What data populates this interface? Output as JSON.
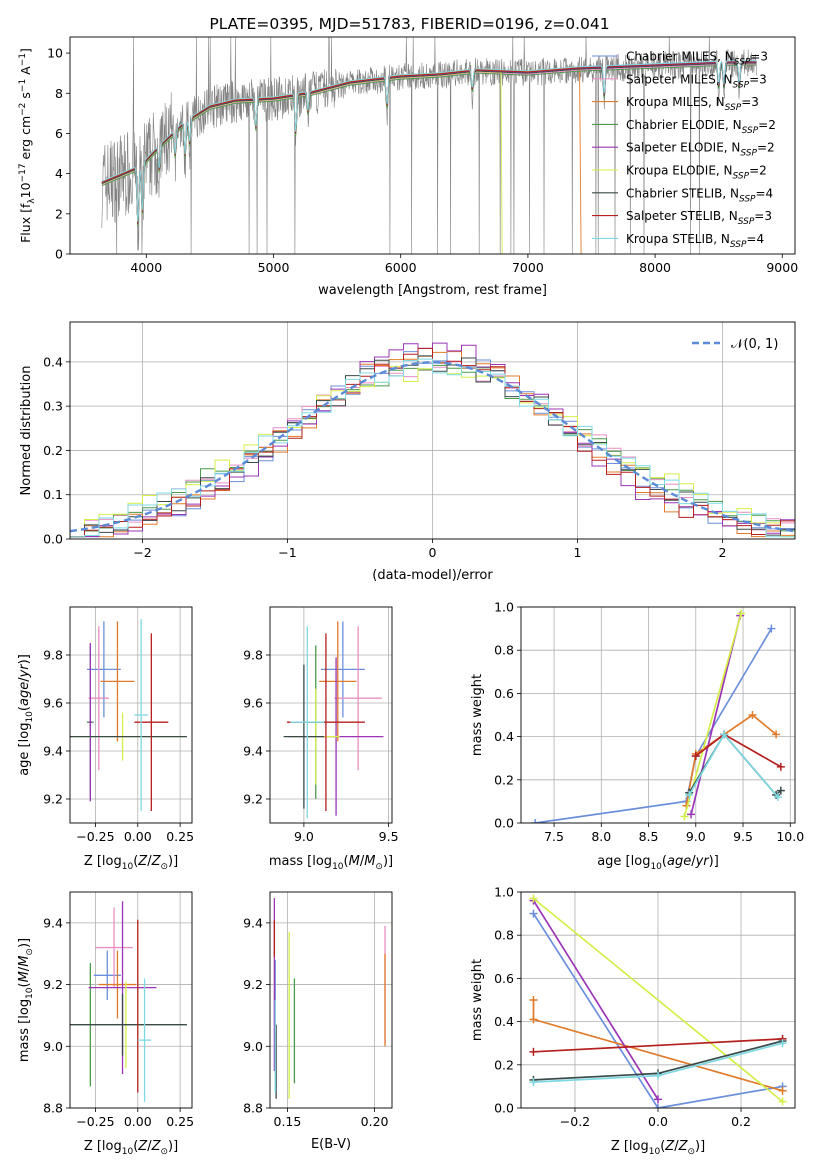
{
  "figure_title": "PLATE=0395, MJD=51783, FIBERID=0196, z=0.041",
  "colors": {
    "chabrier_miles": "#6b8fdc",
    "salpeter_miles": "#e98fc3",
    "kroupa_miles": "#e07b2a",
    "chabrier_elodie": "#4c9a4c",
    "salpeter_elodie": "#9b35b6",
    "kroupa_elodie": "#d4ee4a",
    "chabrier_stelib": "#3a4a4a",
    "salpeter_stelib": "#b51f1f",
    "kroupa_stelib": "#7ed9e3",
    "data_gray": "#808080",
    "normal_dash": "#5b8ad6",
    "grid": "#b0b0b0"
  },
  "chart_data": [
    {
      "id": "spectrum",
      "type": "line",
      "title": "PLATE=0395, MJD=51783, FIBERID=0196, z=0.041",
      "xlabel": "wavelength [Angstrom, rest frame]",
      "ylabel_parts": [
        "Flux [f",
        "λ",
        "10",
        "−17",
        " erg cm",
        "−2",
        " s",
        "−1",
        " A",
        "−1",
        "]"
      ],
      "xlim": [
        3400,
        9100
      ],
      "ylim": [
        0,
        10.8
      ],
      "x_ticks": [
        4000,
        5000,
        6000,
        7000,
        8000,
        9000
      ],
      "y_ticks": [
        0,
        2,
        4,
        6,
        8,
        10
      ],
      "grid": false,
      "legend_position": "top-right",
      "continuum": {
        "x": [
          3650,
          3800,
          3950,
          4100,
          4300,
          4500,
          4700,
          5000,
          5300,
          5600,
          6000,
          6300,
          6600,
          7000,
          7400,
          7800,
          8200,
          8600,
          8800
        ],
        "y": [
          3.5,
          3.9,
          4.3,
          5.3,
          6.5,
          7.3,
          7.6,
          7.7,
          8.0,
          8.5,
          8.8,
          8.9,
          9.1,
          9.0,
          9.2,
          9.3,
          9.4,
          9.5,
          9.5
        ]
      },
      "legend": [
        {
          "label": "Chabrier MILES, N",
          "sub": "SSP",
          "suffix": "=3",
          "color_key": "chabrier_miles"
        },
        {
          "label": "Salpeter MILES, N",
          "sub": "SSP",
          "suffix": "=3",
          "color_key": "salpeter_miles"
        },
        {
          "label": "Kroupa MILES, N",
          "sub": "SSP",
          "suffix": "=3",
          "color_key": "kroupa_miles"
        },
        {
          "label": "Chabrier ELODIE, N",
          "sub": "SSP",
          "suffix": "=2",
          "color_key": "chabrier_elodie"
        },
        {
          "label": "Salpeter ELODIE, N",
          "sub": "SSP",
          "suffix": "=2",
          "color_key": "salpeter_elodie"
        },
        {
          "label": "Kroupa ELODIE, N",
          "sub": "SSP",
          "suffix": "=2",
          "color_key": "kroupa_elodie"
        },
        {
          "label": "Chabrier STELIB, N",
          "sub": "SSP",
          "suffix": "=4",
          "color_key": "chabrier_stelib"
        },
        {
          "label": "Salpeter STELIB, N",
          "sub": "SSP",
          "suffix": "=3",
          "color_key": "salpeter_stelib"
        },
        {
          "label": "Kroupa STELIB, N",
          "sub": "SSP",
          "suffix": "=4",
          "color_key": "kroupa_stelib"
        }
      ]
    },
    {
      "id": "residuals",
      "type": "area",
      "xlabel": "(data-model)/error",
      "ylabel": "Normed distribution",
      "xlim": [
        -2.5,
        2.5
      ],
      "ylim": [
        0,
        0.49
      ],
      "x_ticks": [
        -2,
        -1,
        0,
        1,
        2
      ],
      "y_ticks": [
        0.0,
        0.1,
        0.2,
        0.3,
        0.4
      ],
      "grid": true,
      "legend_position": "top-right",
      "legend": [
        {
          "label": "𝒩(0, 1)",
          "color_key": "normal_dash"
        }
      ],
      "bin_width": 0.1,
      "series": [
        {
          "name": "Chabrier MILES",
          "color_key": "chabrier_miles",
          "offset": 0.012
        },
        {
          "name": "Salpeter MILES",
          "color_key": "salpeter_miles",
          "offset": -0.008
        },
        {
          "name": "Kroupa MILES",
          "color_key": "kroupa_miles",
          "offset": 0.02
        },
        {
          "name": "Chabrier ELODIE",
          "color_key": "chabrier_elodie",
          "offset": -0.015
        },
        {
          "name": "Salpeter ELODIE",
          "color_key": "salpeter_elodie",
          "offset": 0.03
        },
        {
          "name": "Kroupa ELODIE",
          "color_key": "kroupa_elodie",
          "offset": -0.02
        },
        {
          "name": "Chabrier STELIB",
          "color_key": "chabrier_stelib",
          "offset": 0.005
        },
        {
          "name": "Salpeter STELIB",
          "color_key": "salpeter_stelib",
          "offset": 0.018
        },
        {
          "name": "Kroupa STELIB",
          "color_key": "kroupa_stelib",
          "offset": -0.01
        }
      ]
    },
    {
      "id": "age_vs_Z",
      "type": "scatter",
      "xlabel": "Z [log10(Z/Z⊙)]",
      "ylabel": "age  [log10(age/yr)]",
      "xlim": [
        -0.4,
        0.32
      ],
      "ylim": [
        9.1,
        10.0
      ],
      "x_ticks": [
        -0.25,
        0.0,
        0.25
      ],
      "x_tick_labels": [
        "−0.25",
        "0.00",
        "0.25"
      ],
      "y_ticks": [
        9.2,
        9.4,
        9.6,
        9.8
      ],
      "grid": true,
      "points": [
        {
          "color_key": "chabrier_miles",
          "x": -0.2,
          "xerr": 0.1,
          "y": 9.74,
          "yerr": 0.2
        },
        {
          "color_key": "salpeter_miles",
          "x": -0.23,
          "xerr": 0.06,
          "y": 9.62,
          "yerr": 0.3
        },
        {
          "color_key": "kroupa_miles",
          "x": -0.12,
          "xerr": 0.1,
          "y": 9.69,
          "yerr": 0.25
        },
        {
          "color_key": "chabrier_elodie",
          "x": -0.28,
          "xerr": 0.02,
          "y": 9.52,
          "yerr": 0.32
        },
        {
          "color_key": "salpeter_elodie",
          "x": -0.28,
          "xerr": 0.01,
          "y": 9.52,
          "yerr": 0.33
        },
        {
          "color_key": "kroupa_elodie",
          "x": -0.09,
          "xerr": 0.37,
          "y": 9.46,
          "yerr": 0.1
        },
        {
          "color_key": "chabrier_stelib",
          "x": -0.09,
          "xerr": 0.38,
          "y": 9.46,
          "yerr": 0.0
        },
        {
          "color_key": "salpeter_stelib",
          "x": 0.08,
          "xerr": 0.1,
          "y": 9.52,
          "yerr": 0.37
        },
        {
          "color_key": "kroupa_stelib",
          "x": 0.02,
          "xerr": 0.04,
          "y": 9.55,
          "yerr": 0.4
        }
      ]
    },
    {
      "id": "age_vs_mass",
      "type": "scatter",
      "xlabel": "mass [log10(M/M⊙)]",
      "xlim": [
        8.8,
        9.52
      ],
      "ylim": [
        9.1,
        10.0
      ],
      "x_ticks": [
        9.0,
        9.5
      ],
      "x_tick_labels": [
        "9.0",
        "9.5"
      ],
      "y_ticks": [
        9.2,
        9.4,
        9.6,
        9.8
      ],
      "grid": true,
      "points": [
        {
          "color_key": "chabrier_miles",
          "x": 9.23,
          "xerr": 0.13,
          "y": 9.74,
          "yerr": 0.2
        },
        {
          "color_key": "salpeter_miles",
          "x": 9.32,
          "xerr": 0.14,
          "y": 9.62,
          "yerr": 0.3
        },
        {
          "color_key": "kroupa_miles",
          "x": 9.2,
          "xerr": 0.11,
          "y": 9.69,
          "yerr": 0.25
        },
        {
          "color_key": "chabrier_elodie",
          "x": 9.07,
          "xerr": 0.05,
          "y": 9.52,
          "yerr": 0.32
        },
        {
          "color_key": "salpeter_elodie",
          "x": 9.19,
          "xerr": 0.28,
          "y": 9.46,
          "yerr": 0.33
        },
        {
          "color_key": "kroupa_elodie",
          "x": 9.07,
          "xerr": 0.14,
          "y": 9.46,
          "yerr": 0.2
        },
        {
          "color_key": "chabrier_stelib",
          "x": 9.0,
          "xerr": 0.12,
          "y": 9.46,
          "yerr": 0.3
        },
        {
          "color_key": "salpeter_stelib",
          "x": 9.13,
          "xerr": 0.23,
          "y": 9.52,
          "yerr": 0.37
        },
        {
          "color_key": "kroupa_stelib",
          "x": 9.02,
          "xerr": 0.1,
          "y": 9.52,
          "yerr": 0.4
        }
      ]
    },
    {
      "id": "mass_weight_vs_age",
      "type": "line",
      "xlabel": "age  [log10(age/yr)]",
      "ylabel": "mass weight",
      "xlim": [
        7.15,
        10.05
      ],
      "ylim": [
        0,
        1.0
      ],
      "x_ticks": [
        7.5,
        8.0,
        8.5,
        9.0,
        9.5,
        10.0
      ],
      "y_ticks": [
        0.0,
        0.2,
        0.4,
        0.6,
        0.8,
        1.0
      ],
      "grid": true,
      "series": [
        {
          "name": "Chabrier MILES",
          "color_key": "chabrier_miles",
          "x": [
            7.3,
            8.9,
            9.0,
            9.8
          ],
          "y": [
            0.0,
            0.1,
            0.31,
            0.9
          ]
        },
        {
          "name": "Kroupa MILES",
          "color_key": "kroupa_miles",
          "x": [
            8.9,
            9.0,
            9.6,
            9.85
          ],
          "y": [
            0.08,
            0.32,
            0.5,
            0.41
          ]
        },
        {
          "name": "Salpeter ELODIE",
          "color_key": "salpeter_elodie",
          "x": [
            8.95,
            9.47
          ],
          "y": [
            0.04,
            0.96
          ]
        },
        {
          "name": "Kroupa ELODIE",
          "color_key": "kroupa_elodie",
          "x": [
            8.88,
            9.48
          ],
          "y": [
            0.03,
            0.97
          ]
        },
        {
          "name": "Chabrier STELIB",
          "color_key": "chabrier_stelib",
          "x": [
            8.93,
            9.3,
            9.85,
            9.9
          ],
          "y": [
            0.14,
            0.41,
            0.13,
            0.15
          ]
        },
        {
          "name": "Salpeter STELIB",
          "color_key": "salpeter_stelib",
          "x": [
            9.0,
            9.3,
            9.9
          ],
          "y": [
            0.31,
            0.41,
            0.26
          ]
        },
        {
          "name": "Kroupa STELIB",
          "color_key": "kroupa_stelib",
          "x": [
            8.93,
            9.3,
            9.87
          ],
          "y": [
            0.13,
            0.41,
            0.12
          ]
        }
      ]
    },
    {
      "id": "mass_vs_Z",
      "type": "scatter",
      "xlabel": "Z [log10(Z/Z⊙)]",
      "ylabel": "mass [log10(M/M⊙)]",
      "xlim": [
        -0.4,
        0.32
      ],
      "ylim": [
        8.8,
        9.5
      ],
      "x_ticks": [
        -0.25,
        0.0,
        0.25
      ],
      "x_tick_labels": [
        "−0.25",
        "0.00",
        "0.25"
      ],
      "y_ticks": [
        8.8,
        9.0,
        9.2,
        9.4
      ],
      "grid": true,
      "points": [
        {
          "color_key": "chabrier_miles",
          "x": -0.18,
          "xerr": 0.08,
          "y": 9.23,
          "yerr": 0.08
        },
        {
          "color_key": "salpeter_miles",
          "x": -0.14,
          "xerr": 0.11,
          "y": 9.32,
          "yerr": 0.13
        },
        {
          "color_key": "kroupa_miles",
          "x": -0.12,
          "xerr": 0.11,
          "y": 9.2,
          "yerr": 0.11
        },
        {
          "color_key": "chabrier_elodie",
          "x": -0.28,
          "xerr": 0.01,
          "y": 9.07,
          "yerr": 0.2
        },
        {
          "color_key": "salpeter_elodie",
          "x": -0.09,
          "xerr": 0.2,
          "y": 9.19,
          "yerr": 0.28
        },
        {
          "color_key": "kroupa_elodie",
          "x": -0.07,
          "xerr": 0.33,
          "y": 9.07,
          "yerr": 0.14
        },
        {
          "color_key": "chabrier_stelib",
          "x": -0.09,
          "xerr": 0.38,
          "y": 9.07,
          "yerr": 0.1
        },
        {
          "color_key": "salpeter_stelib",
          "x": 0.0,
          "xerr": 0.0,
          "y": 9.13,
          "yerr": 0.28
        },
        {
          "color_key": "kroupa_stelib",
          "x": 0.04,
          "xerr": 0.04,
          "y": 9.02,
          "yerr": 0.2
        }
      ]
    },
    {
      "id": "mass_vs_ebv",
      "type": "scatter",
      "xlabel": "E(B-V)",
      "xlim": [
        0.14,
        0.21
      ],
      "ylim": [
        8.8,
        9.5
      ],
      "x_ticks": [
        0.15,
        0.2
      ],
      "x_tick_labels": [
        "0.15",
        "0.20"
      ],
      "y_ticks": [
        8.8,
        9.0,
        9.2,
        9.4
      ],
      "grid": true,
      "points": [
        {
          "color_key": "chabrier_miles",
          "x": 0.143,
          "xerr": 0.0,
          "y": 9.1,
          "yerr": 0.18
        },
        {
          "color_key": "salpeter_miles",
          "x": 0.206,
          "xerr": 0.0,
          "y": 9.2,
          "yerr": 0.19
        },
        {
          "color_key": "kroupa_miles",
          "x": 0.206,
          "xerr": 0.0,
          "y": 9.15,
          "yerr": 0.15
        },
        {
          "color_key": "chabrier_elodie",
          "x": 0.154,
          "xerr": 0.0,
          "y": 9.05,
          "yerr": 0.17
        },
        {
          "color_key": "salpeter_elodie",
          "x": 0.1425,
          "xerr": 0.0,
          "y": 9.2,
          "yerr": 0.28
        },
        {
          "color_key": "kroupa_elodie",
          "x": 0.151,
          "xerr": 0.0,
          "y": 9.1,
          "yerr": 0.27
        },
        {
          "color_key": "chabrier_stelib",
          "x": 0.1435,
          "xerr": 0.0,
          "y": 8.95,
          "yerr": 0.12
        },
        {
          "color_key": "salpeter_stelib",
          "x": 0.1425,
          "xerr": 0.0,
          "y": 9.35,
          "yerr": 0.06
        },
        {
          "color_key": "kroupa_stelib",
          "x": 0.143,
          "xerr": 0.0,
          "y": 9.0,
          "yerr": 0.15
        }
      ]
    },
    {
      "id": "mass_weight_vs_Z",
      "type": "line",
      "xlabel": "Z [log10(Z/Z⊙)]",
      "ylabel": "mass weight",
      "xlim": [
        -0.33,
        0.33
      ],
      "ylim": [
        0,
        1.0
      ],
      "x_ticks": [
        -0.2,
        0.0,
        0.2
      ],
      "x_tick_labels": [
        "−0.2",
        "0.0",
        "0.2"
      ],
      "y_ticks": [
        0.0,
        0.2,
        0.4,
        0.6,
        0.8,
        1.0
      ],
      "grid": true,
      "series": [
        {
          "name": "Chabrier MILES",
          "color_key": "chabrier_miles",
          "x": [
            -0.3,
            0.0,
            0.3
          ],
          "y": [
            0.9,
            0.0,
            0.1
          ]
        },
        {
          "name": "Kroupa MILES",
          "color_key": "kroupa_miles",
          "x": [
            -0.3,
            -0.3,
            0.3
          ],
          "y": [
            0.5,
            0.41,
            0.08
          ]
        },
        {
          "name": "Salpeter ELODIE",
          "color_key": "salpeter_elodie",
          "x": [
            -0.3,
            0.0
          ],
          "y": [
            0.96,
            0.04
          ]
        },
        {
          "name": "Kroupa ELODIE",
          "color_key": "kroupa_elodie",
          "x": [
            -0.3,
            0.3
          ],
          "y": [
            0.97,
            0.03
          ]
        },
        {
          "name": "Chabrier STELIB",
          "color_key": "chabrier_stelib",
          "x": [
            -0.3,
            0.0,
            0.3
          ],
          "y": [
            0.13,
            0.16,
            0.31
          ]
        },
        {
          "name": "Salpeter STELIB",
          "color_key": "salpeter_stelib",
          "x": [
            -0.3,
            0.3
          ],
          "y": [
            0.26,
            0.32
          ]
        },
        {
          "name": "Kroupa STELIB",
          "color_key": "kroupa_stelib",
          "x": [
            -0.3,
            0.0,
            0.3
          ],
          "y": [
            0.12,
            0.15,
            0.3
          ]
        }
      ]
    }
  ]
}
